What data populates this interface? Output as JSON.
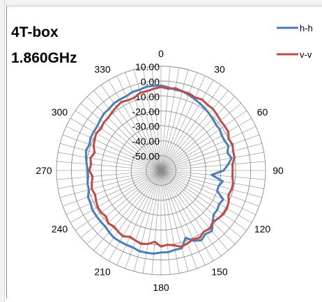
{
  "chart_data": {
    "type": "polar-line",
    "title_lines": [
      "4T-box",
      "1.860GHz"
    ],
    "angle_labels": [
      "0",
      "30",
      "60",
      "90",
      "120",
      "150",
      "180",
      "210",
      "240",
      "270",
      "300",
      "330"
    ],
    "radial_labels": [
      "10.00",
      "0.00",
      "-10.00",
      "-20.00",
      "-30.00",
      "-40.00",
      "-50.00"
    ],
    "rlim": [
      -60,
      10
    ],
    "angle_step_deg": 5,
    "series": [
      {
        "name": "h-h",
        "color": "#4a7ebb",
        "angles": [
          0,
          5,
          10,
          15,
          20,
          25,
          30,
          35,
          40,
          45,
          50,
          55,
          60,
          65,
          70,
          75,
          80,
          85,
          90,
          95,
          100,
          105,
          110,
          115,
          120,
          125,
          130,
          135,
          140,
          145,
          150,
          155,
          160,
          165,
          170,
          175,
          180,
          185,
          190,
          195,
          200,
          205,
          210,
          215,
          220,
          225,
          230,
          235,
          240,
          245,
          250,
          255,
          260,
          265,
          270,
          275,
          280,
          285,
          290,
          295,
          300,
          305,
          310,
          315,
          320,
          325,
          330,
          335,
          340,
          345,
          350,
          355
        ],
        "values": [
          -3,
          -4,
          -5,
          -5,
          -6,
          -7,
          -8,
          -9,
          -10,
          -11,
          -12,
          -12,
          -13,
          -13,
          -12,
          -14,
          -12,
          -15,
          -18,
          -26,
          -18,
          -20,
          -20,
          -14,
          -15,
          -14,
          -14,
          -11,
          -7,
          -8,
          -6,
          -8,
          -12,
          -6,
          -6,
          -5,
          -5,
          -4,
          -4,
          -4,
          -5,
          -5,
          -5,
          -5,
          -6,
          -7,
          -7,
          -7,
          -7,
          -8,
          -8,
          -10,
          -10,
          -11,
          -11,
          -10,
          -9,
          -8,
          -9,
          -8,
          -8,
          -8,
          -7,
          -6,
          -6,
          -5,
          -5,
          -5,
          -4,
          -4,
          -3,
          -3
        ]
      },
      {
        "name": "v-v",
        "color": "#be4b48",
        "angles": [
          0,
          5,
          10,
          15,
          20,
          25,
          30,
          35,
          40,
          45,
          50,
          55,
          60,
          65,
          70,
          75,
          80,
          85,
          90,
          95,
          100,
          105,
          110,
          115,
          120,
          125,
          130,
          135,
          140,
          145,
          150,
          155,
          160,
          165,
          170,
          175,
          180,
          185,
          190,
          195,
          200,
          205,
          210,
          215,
          220,
          225,
          230,
          235,
          240,
          245,
          250,
          255,
          260,
          265,
          270,
          275,
          280,
          285,
          290,
          295,
          300,
          305,
          310,
          315,
          320,
          325,
          330,
          335,
          340,
          345,
          350,
          355
        ],
        "values": [
          -4,
          -5,
          -4,
          -5,
          -5,
          -6,
          -5,
          -6,
          -6,
          -7,
          -8,
          -8,
          -8,
          -10,
          -9,
          -10,
          -10,
          -12,
          -12,
          -12,
          -11,
          -11,
          -12,
          -10,
          -9,
          -9,
          -10,
          -11,
          -9,
          -10,
          -8,
          -9,
          -8,
          -7,
          -9,
          -10,
          -9,
          -12,
          -10,
          -9,
          -10,
          -11,
          -9,
          -10,
          -11,
          -10,
          -12,
          -11,
          -11,
          -12,
          -13,
          -12,
          -13,
          -14,
          -12,
          -13,
          -12,
          -14,
          -12,
          -11,
          -10,
          -11,
          -10,
          -10,
          -9,
          -8,
          -7,
          -8,
          -8,
          -6,
          -6,
          -5
        ]
      }
    ]
  }
}
